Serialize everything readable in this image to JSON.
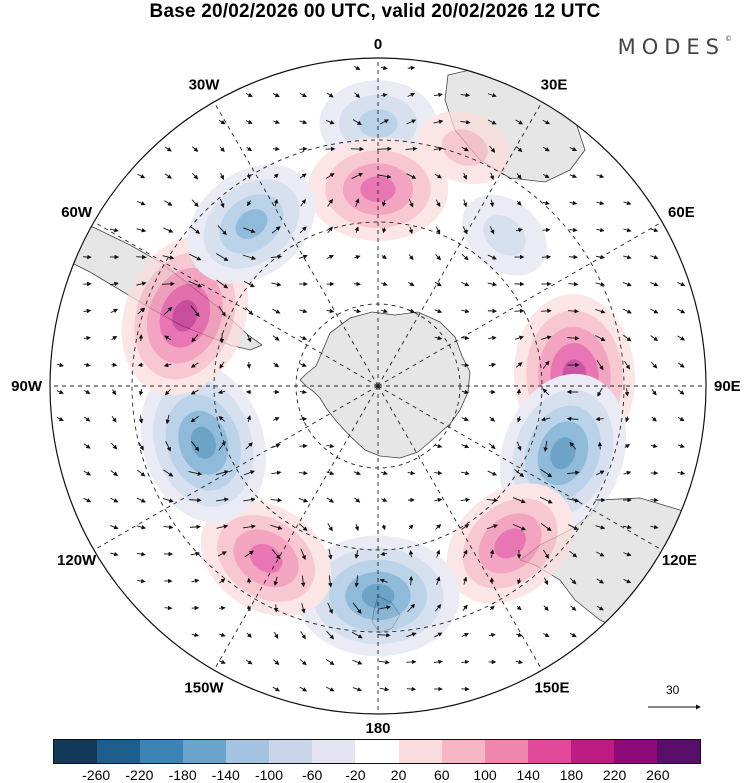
{
  "title": "Base 20/02/2026 00 UTC, valid 20/02/2026 12 UTC",
  "logo": "MODES",
  "logo_mark": "©",
  "longitude_labels": [
    "0",
    "30E",
    "60E",
    "90E",
    "120E",
    "150E",
    "180",
    "150W",
    "120W",
    "90W",
    "60W",
    "30W"
  ],
  "vector_scale_label": "30",
  "colorbar": {
    "ticks": [
      "-260",
      "-220",
      "-180",
      "-140",
      "-100",
      "-60",
      "-20",
      "20",
      "60",
      "100",
      "140",
      "180",
      "220",
      "260"
    ],
    "colors": [
      "#12395a",
      "#1d5f8c",
      "#3b84b5",
      "#6aa3cc",
      "#a5c4e1",
      "#c9d6ea",
      "#e4e4f2",
      "#ffffff",
      "#fbdcdc",
      "#f6b6c3",
      "#ef86ad",
      "#e2499b",
      "#bd1b84",
      "#8c0a78",
      "#5a0e6b"
    ]
  },
  "anomaly_centers": [
    {
      "name": "lat-30-lon-0-low",
      "lat": -30,
      "lon": 0,
      "value": -100
    },
    {
      "name": "lat-45-lon-0-high",
      "lat": -45,
      "lon": 0,
      "value": 140
    },
    {
      "name": "lat-45-lon-40-low",
      "lat": -45,
      "lon": 40,
      "value": -60
    },
    {
      "name": "lat-32-lon-20-high",
      "lat": -32,
      "lon": 20,
      "value": 60
    },
    {
      "name": "lat-45-lon-87-high",
      "lat": -45,
      "lon": 87,
      "value": 180
    },
    {
      "name": "lat-45-lon-110-low",
      "lat": -45,
      "lon": 110,
      "value": -180
    },
    {
      "name": "lat-43-lon-140-high",
      "lat": -43,
      "lon": 140,
      "value": 140
    },
    {
      "name": "lat-42-lon-180-low",
      "lat": -42,
      "lon": 180,
      "value": -180
    },
    {
      "name": "lat-43-lon-213-high",
      "lat": -43,
      "lon": 213,
      "value": 140
    },
    {
      "name": "lat-48-lon-252-low",
      "lat": -48,
      "lon": 252,
      "value": -180
    },
    {
      "name": "lat-43-lon-290-high",
      "lat": -43,
      "lon": 290,
      "value": 180
    },
    {
      "name": "lat-43-lon-322-low",
      "lat": -43,
      "lon": 322,
      "value": -140
    }
  ]
}
